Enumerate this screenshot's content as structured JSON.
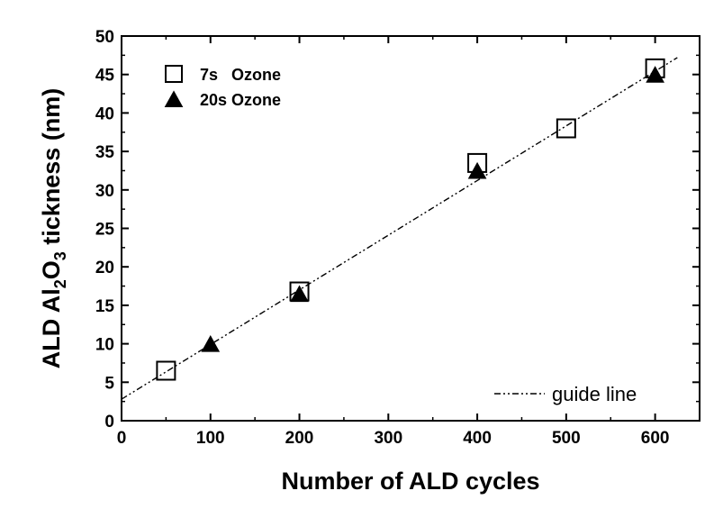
{
  "chart_data": {
    "type": "scatter",
    "xlabel": "Number of ALD cycles",
    "ylabel_parts": [
      "ALD Al",
      "2",
      "O",
      "3",
      " tickness (nm)"
    ],
    "xlim": [
      0,
      650
    ],
    "ylim": [
      0,
      50
    ],
    "xticks": [
      0,
      100,
      200,
      300,
      400,
      500,
      600
    ],
    "yticks": [
      0,
      5,
      10,
      15,
      20,
      25,
      30,
      35,
      40,
      45,
      50
    ],
    "series": [
      {
        "name": "7s   Ozone",
        "marker": "open-square",
        "points": [
          {
            "x": 50,
            "y": 6.5
          },
          {
            "x": 200,
            "y": 16.8
          },
          {
            "x": 400,
            "y": 33.5
          },
          {
            "x": 500,
            "y": 38.0
          },
          {
            "x": 600,
            "y": 45.8
          }
        ]
      },
      {
        "name": "20s Ozone",
        "marker": "filled-triangle",
        "points": [
          {
            "x": 100,
            "y": 10.0
          },
          {
            "x": 200,
            "y": 16.5
          },
          {
            "x": 400,
            "y": 32.5
          },
          {
            "x": 600,
            "y": 45.0
          }
        ]
      }
    ],
    "guide_line": {
      "label": "guide line",
      "style": "dash-dot-dot",
      "from": {
        "x": 0,
        "y": 2.8
      },
      "to": {
        "x": 625,
        "y": 47.2
      }
    },
    "legend_position": "top-left",
    "guide_legend_position": "bottom-right"
  }
}
